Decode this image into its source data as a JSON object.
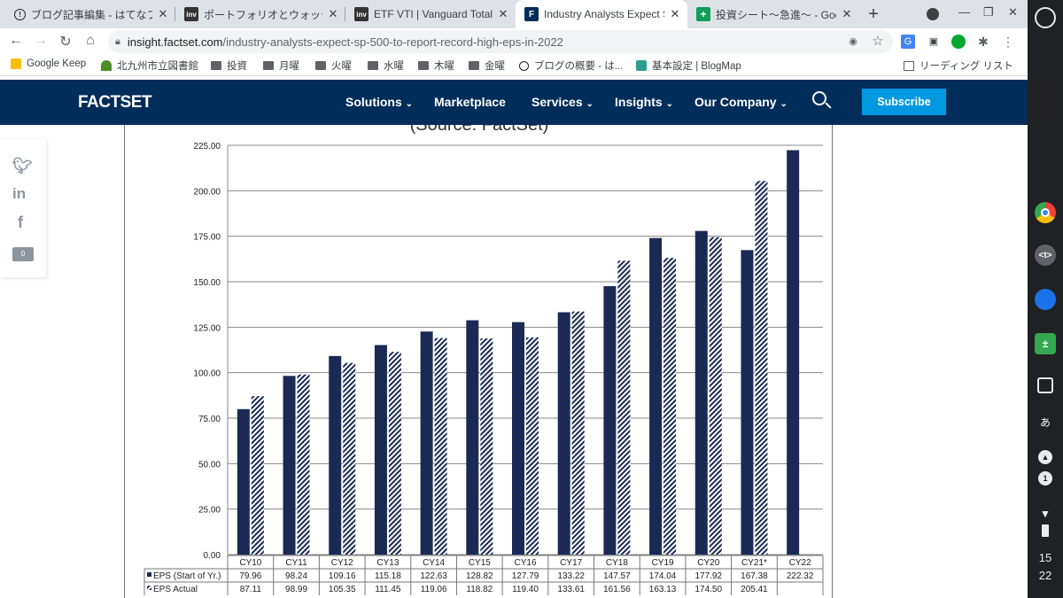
{
  "tabs": [
    {
      "title": "ブログ記事編集 - はてなブ",
      "icon": "hatena-icon",
      "active": false
    },
    {
      "title": "ポートフォリオとウォッチ",
      "icon": "investing-icon",
      "active": false
    },
    {
      "title": "ETF VTI | Vanguard Total St",
      "icon": "investing-icon",
      "active": false
    },
    {
      "title": "Industry Analysts Expect S&",
      "icon": "factset-icon",
      "active": true
    },
    {
      "title": "投資シート〜急進〜 - Goo",
      "icon": "sheets-icon",
      "active": false
    }
  ],
  "favicons": {
    "investing": "inv",
    "factset": "F"
  },
  "address": {
    "host": "insight.factset.com",
    "path": "/industry-analysts-expect-sp-500-to-report-record-high-eps-in-2022"
  },
  "bookmarks": [
    {
      "label": "Google Keep",
      "icon": "keep-icon"
    },
    {
      "label": "北九州市立図書館",
      "icon": "library-icon"
    },
    {
      "label": "投資",
      "icon": "folder-icon"
    },
    {
      "label": "月曜",
      "icon": "folder-icon"
    },
    {
      "label": "火曜",
      "icon": "folder-icon"
    },
    {
      "label": "水曜",
      "icon": "folder-icon"
    },
    {
      "label": "木曜",
      "icon": "folder-icon"
    },
    {
      "label": "金曜",
      "icon": "folder-icon"
    },
    {
      "label": "ブログの概要 - は...",
      "icon": "hatena-icon"
    },
    {
      "label": "基本設定 | BlogMap",
      "icon": "blogmap-icon"
    }
  ],
  "reading_list": "リーディング リスト",
  "site": {
    "logo": "FACTSET",
    "nav": [
      "Solutions",
      "Marketplace",
      "Services",
      "Insights",
      "Our Company"
    ],
    "subscribe": "Subscribe",
    "brand_color": "#002d5a",
    "accent": "#0099e0"
  },
  "share": {
    "comment_count": "0"
  },
  "clock": {
    "hour": "15",
    "minute": "22"
  },
  "chart_data": {
    "type": "bar",
    "title": "(Source: FactSet)",
    "categories": [
      "CY10",
      "CY11",
      "CY12",
      "CY13",
      "CY14",
      "CY15",
      "CY16",
      "CY17",
      "CY18",
      "CY19",
      "CY20",
      "CY21*",
      "CY22"
    ],
    "ylim": [
      0,
      225
    ],
    "yticks": [
      "0.00",
      "25.00",
      "50.00",
      "75.00",
      "100.00",
      "125.00",
      "150.00",
      "175.00",
      "200.00",
      "225.00"
    ],
    "grid": true,
    "series": [
      {
        "name": "EPS (Start of Yr.)",
        "color": "#1b2a55",
        "pattern": "solid",
        "values": [
          79.96,
          98.24,
          109.16,
          115.18,
          122.63,
          128.82,
          127.79,
          133.22,
          147.57,
          174.04,
          177.92,
          167.38,
          222.32
        ],
        "labels": [
          "79.96",
          "98.24",
          "109.16",
          "115.18",
          "122.63",
          "128.82",
          "127.79",
          "133.22",
          "147.57",
          "174.04",
          "177.92",
          "167.38",
          "222.32"
        ]
      },
      {
        "name": "EPS Actual",
        "color": "#1b2a55",
        "pattern": "hatched",
        "values": [
          87.11,
          98.99,
          105.35,
          111.45,
          119.06,
          118.82,
          119.4,
          133.61,
          161.56,
          163.13,
          174.5,
          205.41,
          null
        ],
        "labels": [
          "87.11",
          "98.99",
          "105.35",
          "111.45",
          "119.06",
          "118.82",
          "119.40",
          "133.61",
          "161.56",
          "163.13",
          "174.50",
          "205.41",
          ""
        ]
      }
    ]
  }
}
